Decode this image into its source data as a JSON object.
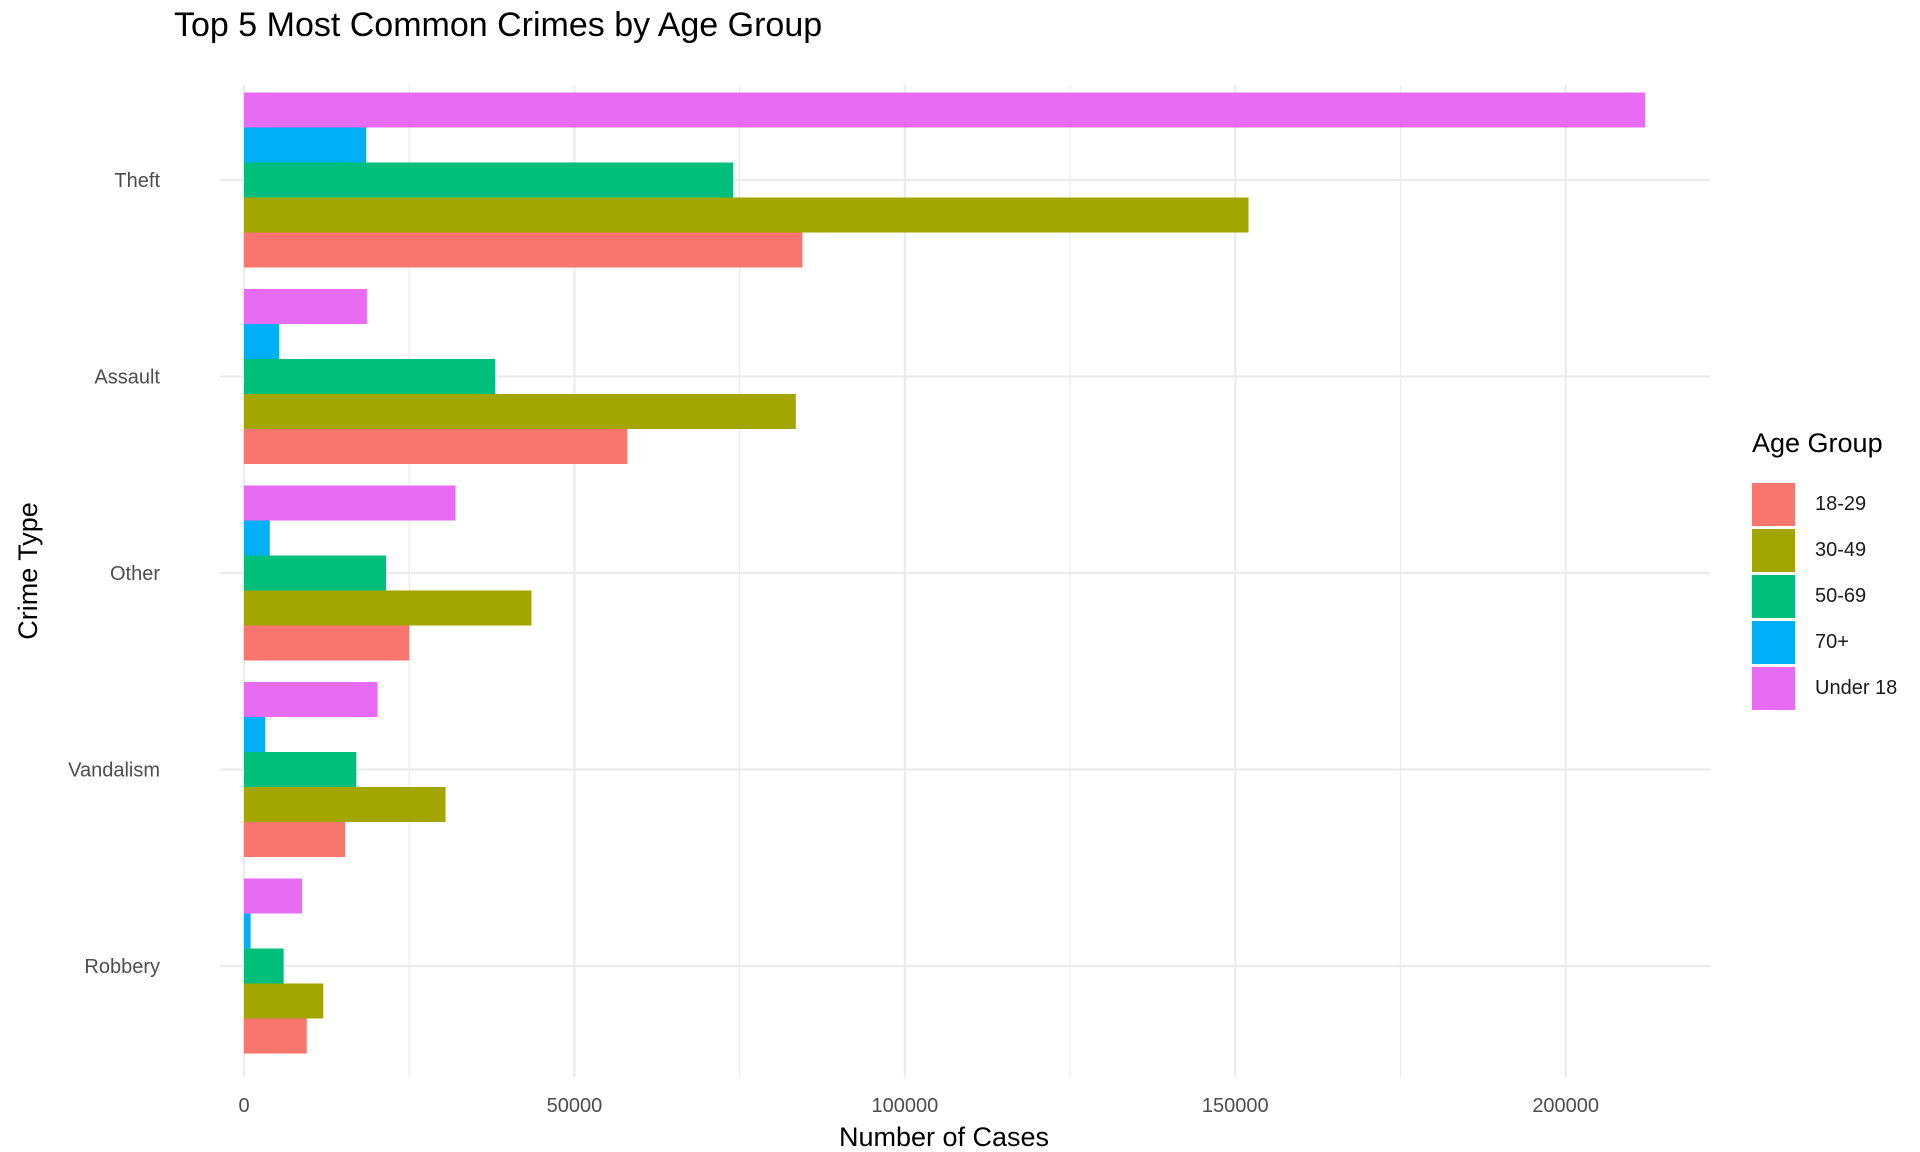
{
  "chart_data": {
    "type": "bar",
    "orientation": "horizontal",
    "title": "Top 5 Most Common Crimes by Age Group",
    "xlabel": "Number of Cases",
    "ylabel": "Crime Type",
    "xlim": [
      0,
      222000
    ],
    "x_ticks": [
      0,
      50000,
      100000,
      150000,
      200000
    ],
    "x_tick_labels": [
      "0",
      "50000",
      "100000",
      "150000",
      "200000"
    ],
    "categories": [
      "Theft",
      "Assault",
      "Other",
      "Vandalism",
      "Robbery"
    ],
    "legend_title": "Age Group",
    "legend_position": "right",
    "grid": true,
    "series": [
      {
        "name": "18-29",
        "color": "#F8766D",
        "values": [
          84500,
          58000,
          25000,
          15300,
          9500
        ]
      },
      {
        "name": "30-49",
        "color": "#A3A500",
        "values": [
          152000,
          83500,
          43500,
          30500,
          12000
        ]
      },
      {
        "name": "50-69",
        "color": "#00BF7D",
        "values": [
          74000,
          38000,
          21500,
          17000,
          6000
        ]
      },
      {
        "name": "70+",
        "color": "#00B0F6",
        "values": [
          18500,
          5300,
          3900,
          3200,
          1000
        ]
      },
      {
        "name": "Under 18",
        "color": "#E76BF3",
        "values": [
          212000,
          18600,
          32000,
          20200,
          8800
        ]
      }
    ]
  }
}
